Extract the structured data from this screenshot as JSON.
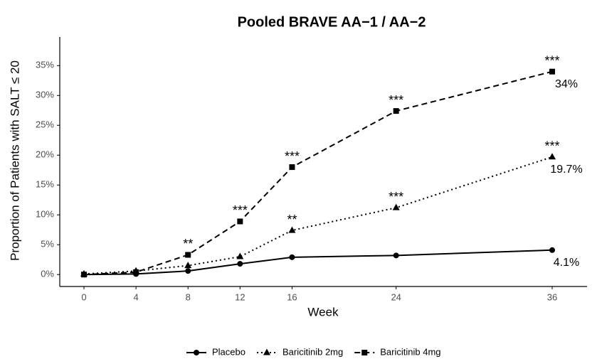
{
  "chart_data": {
    "type": "line",
    "title": "Pooled BRAVE AA−1 / AA−2",
    "x_label": "Week",
    "y_label": "Proportion of Patients with SALT ≤ 20",
    "x": [
      0,
      4,
      8,
      12,
      16,
      24,
      36
    ],
    "xlim": [
      -1.86,
      38.68
    ],
    "xticks": [
      0,
      4,
      8,
      12,
      16,
      24,
      36
    ],
    "ylim": [
      -2,
      39.8
    ],
    "yticks": [
      {
        "value": 0,
        "label": "0%"
      },
      {
        "value": 5,
        "label": "5%"
      },
      {
        "value": 10,
        "label": "10%"
      },
      {
        "value": 15,
        "label": "15%"
      },
      {
        "value": 20,
        "label": "20%"
      },
      {
        "value": 25,
        "label": "25%"
      },
      {
        "value": 30,
        "label": "30%"
      },
      {
        "value": 35,
        "label": "35%"
      }
    ],
    "legend": "bottom",
    "series": [
      {
        "name": "Placebo",
        "color": "#000000",
        "marker": "circle",
        "dash": "solid",
        "values": [
          0,
          0.1,
          0.6,
          1.8,
          2.9,
          3.2,
          4.1
        ],
        "value_labels": [
          null,
          null,
          null,
          null,
          null,
          null,
          "4.1%"
        ],
        "significance": [
          null,
          null,
          null,
          null,
          null,
          null,
          null
        ]
      },
      {
        "name": "Baricitinib 2mg",
        "color": "#000000",
        "marker": "triangle",
        "dash": "dotted",
        "values": [
          0.1,
          0.6,
          1.5,
          3.0,
          7.4,
          11.2,
          19.7
        ],
        "value_labels": [
          null,
          null,
          null,
          null,
          null,
          null,
          "19.7%"
        ],
        "significance": [
          null,
          null,
          null,
          null,
          "**",
          "***",
          "***"
        ]
      },
      {
        "name": "Baricitinib 4mg",
        "color": "#000000",
        "marker": "square",
        "dash": "dashed",
        "values": [
          0,
          0.4,
          3.3,
          8.9,
          18.0,
          27.4,
          34
        ],
        "value_labels": [
          null,
          null,
          null,
          null,
          null,
          null,
          "34%"
        ],
        "significance": [
          null,
          null,
          "**",
          "***",
          "***",
          "***",
          "***"
        ]
      }
    ]
  }
}
